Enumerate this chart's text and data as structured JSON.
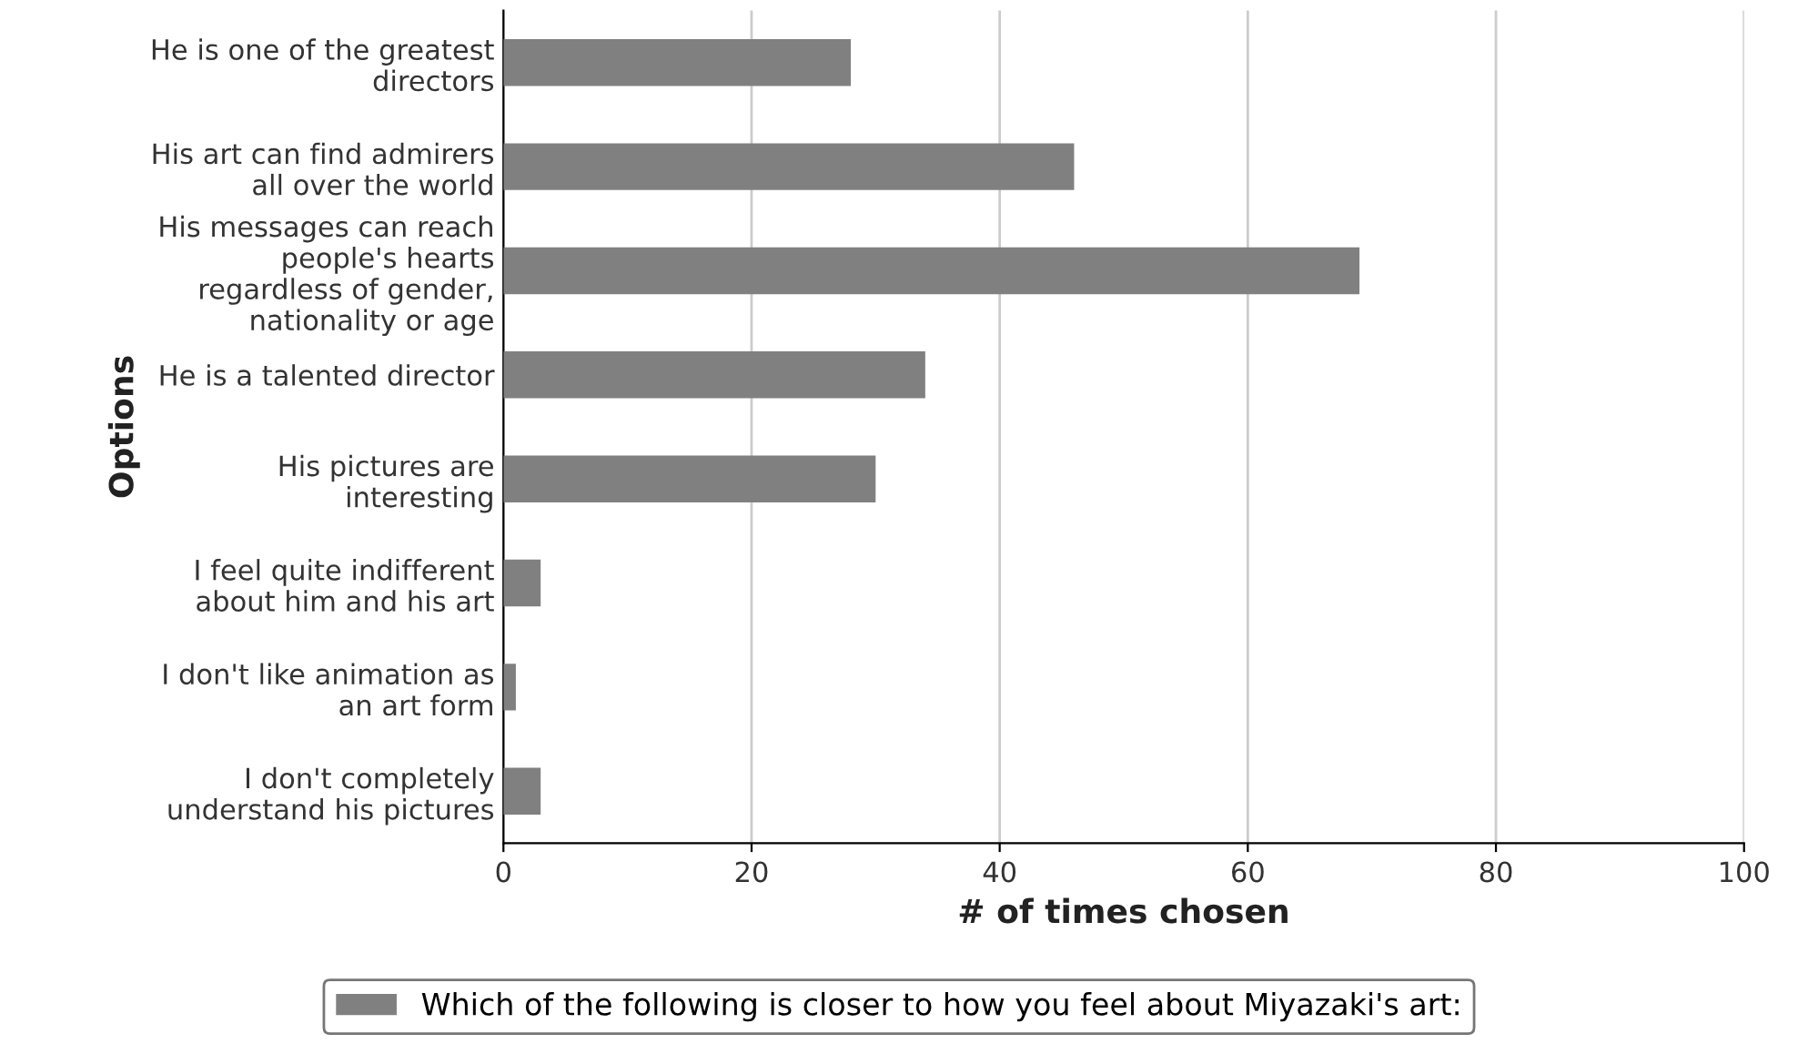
{
  "chart_data": {
    "type": "bar",
    "orientation": "horizontal",
    "xlabel": "# of times chosen",
    "ylabel": "Options",
    "categories": [
      "He is one of the greatest\ndirectors",
      "His art can find admirers\nall over the world",
      "His messages can reach\npeople's hearts\nregardless of gender,\nnationality or age",
      "He is a talented director",
      "His pictures are\ninteresting",
      "I feel quite indifferent\nabout him and his art",
      "I don't like animation as\nan art form",
      "I don't completely\nunderstand his pictures"
    ],
    "series": [
      {
        "name": "Which of the following is closer to how you feel about Miyazaki's art:",
        "color": "#808080",
        "values": [
          28,
          46,
          69,
          34,
          30,
          3,
          1,
          3
        ]
      }
    ],
    "xlim": [
      0,
      100
    ],
    "xticks": [
      0,
      20,
      40,
      60,
      80,
      100
    ],
    "grid": "x",
    "legend": "bottom"
  }
}
